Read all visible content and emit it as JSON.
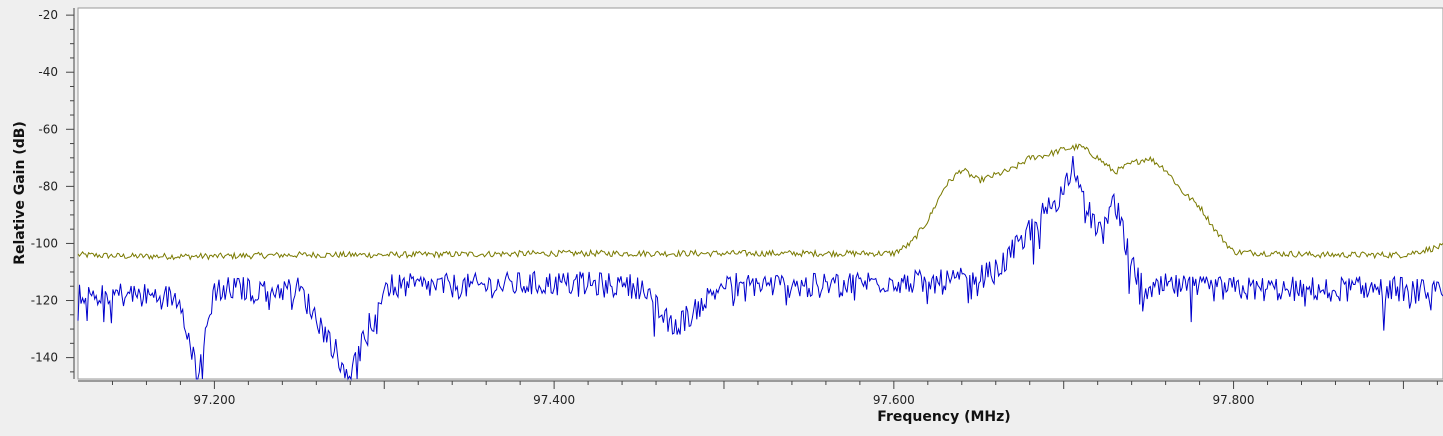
{
  "chart_data": {
    "type": "line",
    "xlabel": "Frequency (MHz)",
    "ylabel": "Relative Gain (dB)",
    "xlim": [
      97.1197,
      97.9233
    ],
    "ylim": [
      -147.5,
      -17.5
    ],
    "x_ticks": [
      97.2,
      97.4,
      97.6,
      97.8
    ],
    "x_tick_labels": [
      "97.200",
      "97.400",
      "97.600",
      "97.800"
    ],
    "y_ticks": [
      -20,
      -40,
      -60,
      -80,
      -100,
      -120,
      -140
    ],
    "y_tick_labels": [
      "-20",
      "-40",
      "-60",
      "-80",
      "-100",
      "-120",
      "-140"
    ],
    "grid": false,
    "series": [
      {
        "color": "#7a7a00",
        "x": [
          97.12,
          97.15,
          97.2,
          97.25,
          97.3,
          97.4,
          97.5,
          97.6,
          97.61,
          97.62,
          97.63,
          97.64,
          97.65,
          97.66,
          97.67,
          97.68,
          97.69,
          97.7,
          97.71,
          97.72,
          97.73,
          97.74,
          97.75,
          97.76,
          97.77,
          97.78,
          97.79,
          97.8,
          97.85,
          97.9,
          97.923
        ],
        "y": [
          -104,
          -104.5,
          -104.5,
          -104,
          -104,
          -103.5,
          -103.5,
          -103.5,
          -100,
          -92,
          -80,
          -74,
          -78,
          -76,
          -74,
          -70,
          -69,
          -67,
          -66,
          -70,
          -75,
          -72,
          -70,
          -74,
          -82,
          -87,
          -96,
          -103,
          -104,
          -104,
          -101
        ]
      },
      {
        "color": "#0000cc",
        "x": [
          97.12,
          97.15,
          97.18,
          97.19,
          97.2,
          97.25,
          97.28,
          97.3,
          97.35,
          97.4,
          97.45,
          97.47,
          97.5,
          97.55,
          97.6,
          97.62,
          97.64,
          97.66,
          97.67,
          97.68,
          97.69,
          97.7,
          97.705,
          97.71,
          97.72,
          97.73,
          97.74,
          97.75,
          97.76,
          97.78,
          97.8,
          97.85,
          97.9,
          97.923
        ],
        "y": [
          -117,
          -118,
          -119,
          -146,
          -116,
          -116,
          -146,
          -115,
          -115,
          -114,
          -115,
          -130,
          -114,
          -115,
          -113,
          -114,
          -113,
          -110,
          -103,
          -95,
          -88,
          -82,
          -70,
          -84,
          -95,
          -85,
          -108,
          -118,
          -115,
          -116,
          -116,
          -116,
          -116,
          -118
        ]
      }
    ]
  }
}
